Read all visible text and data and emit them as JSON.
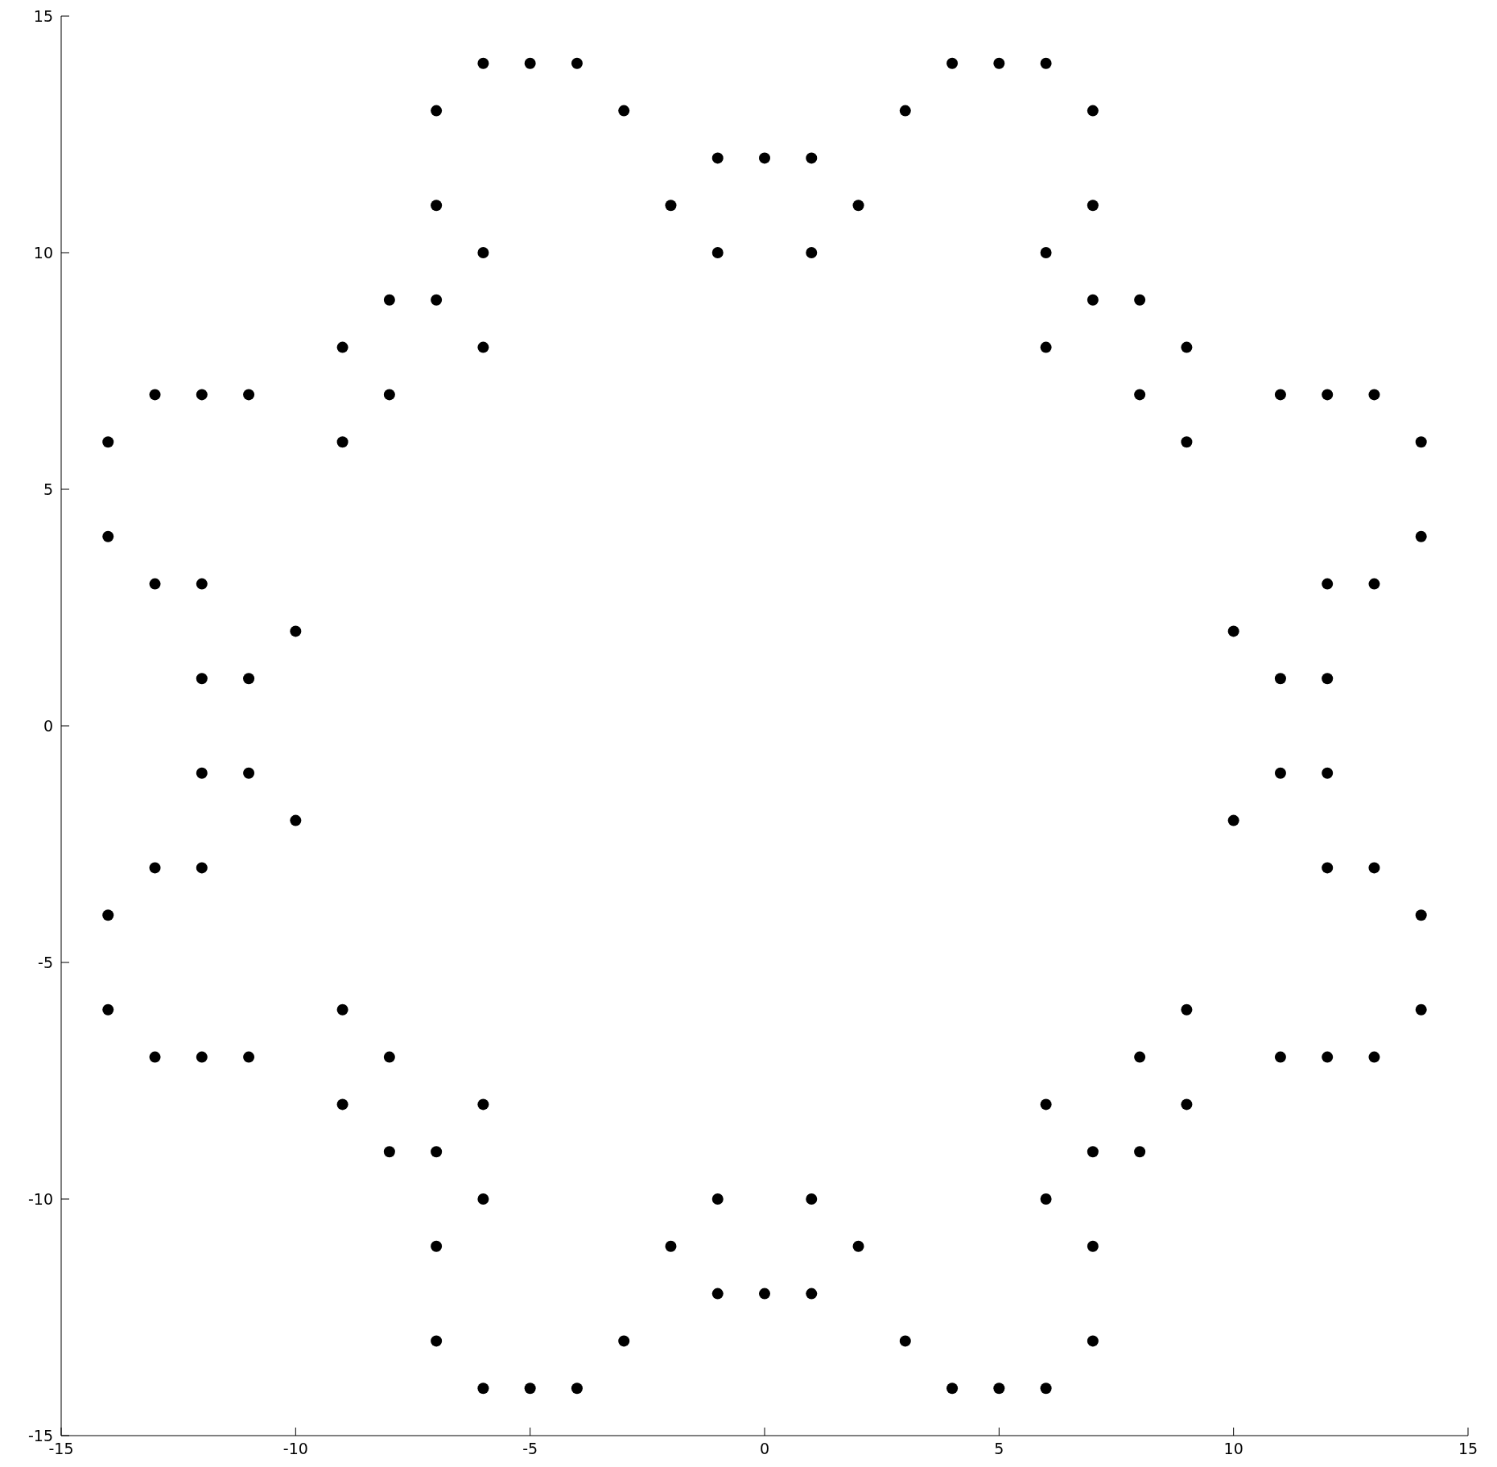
{
  "chart_data": {
    "type": "scatter",
    "x": [
      -6,
      -5,
      -4,
      4,
      5,
      6,
      -7,
      -3,
      3,
      7,
      -1,
      0,
      1,
      -7,
      -2,
      2,
      7,
      -6,
      -1,
      1,
      6,
      -8,
      -7,
      7,
      8,
      -9,
      -6,
      6,
      9,
      -13,
      -12,
      -11,
      -8,
      8,
      11,
      12,
      13,
      -14,
      -9,
      9,
      14,
      -14,
      14,
      -13,
      -12,
      12,
      13,
      -10,
      10,
      -12,
      -11,
      11,
      12,
      -12,
      -11,
      11,
      12,
      -10,
      10,
      -13,
      -12,
      12,
      13,
      -14,
      14,
      -14,
      -9,
      9,
      14,
      -13,
      -12,
      -11,
      -8,
      8,
      11,
      12,
      13,
      -9,
      -6,
      6,
      9,
      -8,
      -7,
      7,
      8,
      -6,
      -1,
      1,
      6,
      -7,
      -2,
      2,
      7,
      -1,
      0,
      1,
      -7,
      -3,
      3,
      7,
      -6,
      -5,
      -4,
      4,
      5,
      6
    ],
    "values": [
      14,
      14,
      14,
      14,
      14,
      14,
      13,
      13,
      13,
      13,
      12,
      12,
      12,
      11,
      11,
      11,
      11,
      10,
      10,
      10,
      10,
      9,
      9,
      9,
      9,
      8,
      8,
      8,
      8,
      7,
      7,
      7,
      7,
      7,
      7,
      7,
      7,
      6,
      6,
      6,
      6,
      4,
      4,
      3,
      3,
      3,
      3,
      2,
      2,
      1,
      1,
      1,
      1,
      -1,
      -1,
      -1,
      -1,
      -2,
      -2,
      -3,
      -3,
      -3,
      -3,
      -4,
      -4,
      -6,
      -6,
      -6,
      -6,
      -7,
      -7,
      -7,
      -7,
      -7,
      -7,
      -7,
      -7,
      -8,
      -8,
      -8,
      -8,
      -9,
      -9,
      -9,
      -9,
      -10,
      -10,
      -10,
      -10,
      -11,
      -11,
      -11,
      -11,
      -12,
      -12,
      -12,
      -13,
      -13,
      -13,
      -13,
      -14,
      -14,
      -14,
      -14,
      -14,
      -14
    ],
    "color": "#000000",
    "marker": "circle",
    "xlim": [
      -15,
      15
    ],
    "xticks": [
      -15,
      -10,
      -5,
      0,
      5,
      10,
      15
    ],
    "ylim": [
      -15,
      15
    ],
    "yticks": [
      -15,
      -10,
      -5,
      0,
      5,
      10,
      15
    ],
    "grid": false,
    "legend": false
  }
}
